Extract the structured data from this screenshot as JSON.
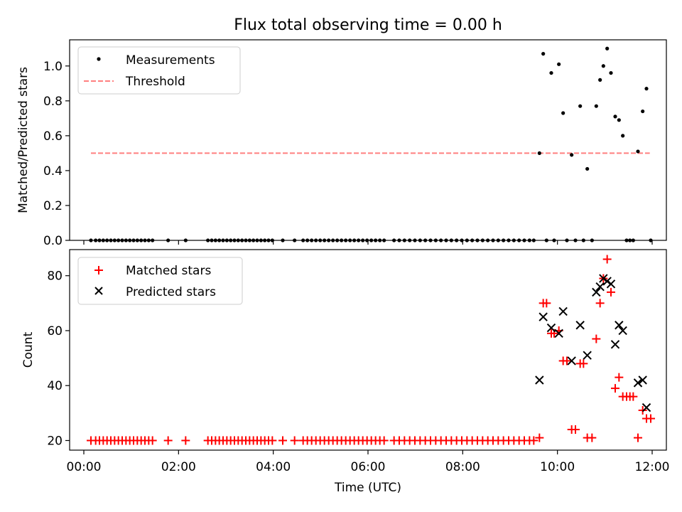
{
  "chart_data": [
    {
      "type": "scatter",
      "title": "Flux total observing time = 0.00 h",
      "xlabel": "",
      "ylabel": "Matched/Predicted stars",
      "xlim": [
        -0.3,
        12.3
      ],
      "ylim": [
        0,
        1.15
      ],
      "yticks": [
        0.0,
        0.2,
        0.4,
        0.6,
        0.8,
        1.0
      ],
      "ytick_labels": [
        "0.0",
        "0.2",
        "0.4",
        "0.6",
        "0.8",
        "1.0"
      ],
      "xticks": [
        0,
        2,
        4,
        6,
        8,
        10,
        12
      ],
      "grid": false,
      "legend_position": "top-left",
      "legend": [
        {
          "label": "Measurements",
          "marker": "dot",
          "color": "#000000"
        },
        {
          "label": "Threshold",
          "marker": "dashed-line",
          "color": "#ff7f7f"
        }
      ],
      "threshold": {
        "y": 0.5,
        "x_start": 0.15,
        "x_end": 11.95
      },
      "measurements": [
        [
          0.15,
          0
        ],
        [
          0.25,
          0
        ],
        [
          0.33,
          0
        ],
        [
          0.41,
          0
        ],
        [
          0.49,
          0
        ],
        [
          0.57,
          0
        ],
        [
          0.65,
          0
        ],
        [
          0.73,
          0
        ],
        [
          0.81,
          0
        ],
        [
          0.89,
          0
        ],
        [
          0.97,
          0
        ],
        [
          1.05,
          0
        ],
        [
          1.13,
          0
        ],
        [
          1.21,
          0
        ],
        [
          1.29,
          0
        ],
        [
          1.37,
          0
        ],
        [
          1.45,
          0
        ],
        [
          1.78,
          0
        ],
        [
          2.15,
          0
        ],
        [
          2.62,
          0
        ],
        [
          2.7,
          0
        ],
        [
          2.78,
          0
        ],
        [
          2.86,
          0
        ],
        [
          2.94,
          0
        ],
        [
          3.02,
          0
        ],
        [
          3.1,
          0
        ],
        [
          3.18,
          0
        ],
        [
          3.26,
          0
        ],
        [
          3.34,
          0
        ],
        [
          3.42,
          0
        ],
        [
          3.5,
          0
        ],
        [
          3.58,
          0
        ],
        [
          3.66,
          0
        ],
        [
          3.74,
          0
        ],
        [
          3.82,
          0
        ],
        [
          3.9,
          0
        ],
        [
          3.98,
          0
        ],
        [
          4.2,
          0
        ],
        [
          4.45,
          0
        ],
        [
          4.63,
          0
        ],
        [
          4.72,
          0
        ],
        [
          4.81,
          0
        ],
        [
          4.9,
          0
        ],
        [
          4.99,
          0
        ],
        [
          5.08,
          0
        ],
        [
          5.17,
          0
        ],
        [
          5.26,
          0
        ],
        [
          5.35,
          0
        ],
        [
          5.44,
          0
        ],
        [
          5.53,
          0
        ],
        [
          5.62,
          0
        ],
        [
          5.71,
          0
        ],
        [
          5.8,
          0
        ],
        [
          5.89,
          0
        ],
        [
          5.98,
          0
        ],
        [
          6.07,
          0
        ],
        [
          6.16,
          0
        ],
        [
          6.25,
          0
        ],
        [
          6.34,
          0
        ],
        [
          6.55,
          0
        ],
        [
          6.66,
          0
        ],
        [
          6.77,
          0
        ],
        [
          6.88,
          0
        ],
        [
          6.99,
          0
        ],
        [
          7.1,
          0
        ],
        [
          7.21,
          0
        ],
        [
          7.32,
          0
        ],
        [
          7.43,
          0
        ],
        [
          7.54,
          0
        ],
        [
          7.65,
          0
        ],
        [
          7.76,
          0
        ],
        [
          7.87,
          0
        ],
        [
          7.98,
          0
        ],
        [
          8.09,
          0
        ],
        [
          8.2,
          0
        ],
        [
          8.31,
          0
        ],
        [
          8.42,
          0
        ],
        [
          8.53,
          0
        ],
        [
          8.64,
          0
        ],
        [
          8.75,
          0
        ],
        [
          8.86,
          0
        ],
        [
          8.97,
          0
        ],
        [
          9.08,
          0
        ],
        [
          9.19,
          0
        ],
        [
          9.3,
          0
        ],
        [
          9.41,
          0
        ],
        [
          9.5,
          0
        ],
        [
          9.62,
          0.5
        ],
        [
          9.7,
          1.07
        ],
        [
          9.77,
          0
        ],
        [
          9.87,
          0.96
        ],
        [
          9.93,
          0
        ],
        [
          10.03,
          1.01
        ],
        [
          10.12,
          0.73
        ],
        [
          10.2,
          0
        ],
        [
          10.3,
          0.49
        ],
        [
          10.38,
          0
        ],
        [
          10.48,
          0.77
        ],
        [
          10.55,
          0
        ],
        [
          10.63,
          0.41
        ],
        [
          10.73,
          0
        ],
        [
          10.82,
          0.77
        ],
        [
          10.9,
          0.92
        ],
        [
          10.97,
          1.0
        ],
        [
          11.05,
          1.1
        ],
        [
          11.13,
          0.96
        ],
        [
          11.22,
          0.71
        ],
        [
          11.3,
          0.69
        ],
        [
          11.38,
          0.6
        ],
        [
          11.46,
          0
        ],
        [
          11.53,
          0
        ],
        [
          11.6,
          0
        ],
        [
          11.7,
          0.51
        ],
        [
          11.8,
          0.74
        ],
        [
          11.88,
          0.87
        ],
        [
          11.97,
          0
        ]
      ]
    },
    {
      "type": "scatter",
      "title": "",
      "xlabel": "Time (UTC)",
      "ylabel": "Count",
      "xlim": [
        -0.3,
        12.3
      ],
      "ylim": [
        16.5,
        89.5
      ],
      "yticks": [
        20,
        40,
        60,
        80
      ],
      "ytick_labels": [
        "20",
        "40",
        "60",
        "80"
      ],
      "xticks": [
        0,
        2,
        4,
        6,
        8,
        10,
        12
      ],
      "xtick_labels": [
        "00:00",
        "02:00",
        "04:00",
        "06:00",
        "08:00",
        "10:00",
        "12:00"
      ],
      "grid": false,
      "legend_position": "top-left",
      "legend": [
        {
          "label": "Matched stars",
          "marker": "plus",
          "color": "#ff0000"
        },
        {
          "label": "Predicted stars",
          "marker": "x",
          "color": "#000000"
        }
      ],
      "matched_zero_times": [
        0.15,
        0.25,
        0.33,
        0.41,
        0.49,
        0.57,
        0.65,
        0.73,
        0.81,
        0.89,
        0.97,
        1.05,
        1.13,
        1.21,
        1.29,
        1.37,
        1.45,
        1.78,
        2.15,
        2.62,
        2.7,
        2.78,
        2.86,
        2.94,
        3.02,
        3.1,
        3.18,
        3.26,
        3.34,
        3.42,
        3.5,
        3.58,
        3.66,
        3.74,
        3.82,
        3.9,
        3.98,
        4.2,
        4.45,
        4.63,
        4.72,
        4.81,
        4.9,
        4.99,
        5.08,
        5.17,
        5.26,
        5.35,
        5.44,
        5.53,
        5.62,
        5.71,
        5.8,
        5.89,
        5.98,
        6.07,
        6.16,
        6.25,
        6.34,
        6.55,
        6.66,
        6.77,
        6.88,
        6.99,
        7.1,
        7.21,
        7.32,
        7.43,
        7.54,
        7.65,
        7.76,
        7.87,
        7.98,
        8.09,
        8.2,
        8.31,
        8.42,
        8.53,
        8.64,
        8.75,
        8.86,
        8.97,
        9.08,
        9.19,
        9.3,
        9.41,
        9.5
      ],
      "matched_zero_value": 20,
      "matched": [
        [
          9.62,
          21
        ],
        [
          9.7,
          70
        ],
        [
          9.77,
          70
        ],
        [
          9.87,
          59
        ],
        [
          9.93,
          59
        ],
        [
          10.03,
          60
        ],
        [
          10.12,
          49
        ],
        [
          10.2,
          49
        ],
        [
          10.3,
          24
        ],
        [
          10.38,
          24
        ],
        [
          10.48,
          48
        ],
        [
          10.55,
          48
        ],
        [
          10.63,
          21
        ],
        [
          10.73,
          21
        ],
        [
          10.82,
          57
        ],
        [
          10.9,
          70
        ],
        [
          10.97,
          79
        ],
        [
          11.05,
          86
        ],
        [
          11.13,
          74
        ],
        [
          11.22,
          39
        ],
        [
          11.3,
          43
        ],
        [
          11.38,
          36
        ],
        [
          11.46,
          36
        ],
        [
          11.53,
          36
        ],
        [
          11.6,
          36
        ],
        [
          11.7,
          21
        ],
        [
          11.8,
          31
        ],
        [
          11.88,
          28
        ],
        [
          11.97,
          28
        ]
      ],
      "predicted": [
        [
          9.62,
          42
        ],
        [
          9.7,
          65
        ],
        [
          9.87,
          61
        ],
        [
          10.03,
          59
        ],
        [
          10.12,
          67
        ],
        [
          10.3,
          49
        ],
        [
          10.48,
          62
        ],
        [
          10.63,
          51
        ],
        [
          10.82,
          74
        ],
        [
          10.9,
          76
        ],
        [
          10.97,
          79
        ],
        [
          11.05,
          78
        ],
        [
          11.13,
          77
        ],
        [
          11.22,
          55
        ],
        [
          11.3,
          62
        ],
        [
          11.38,
          60
        ],
        [
          11.7,
          41
        ],
        [
          11.8,
          42
        ],
        [
          11.88,
          32
        ]
      ]
    }
  ]
}
